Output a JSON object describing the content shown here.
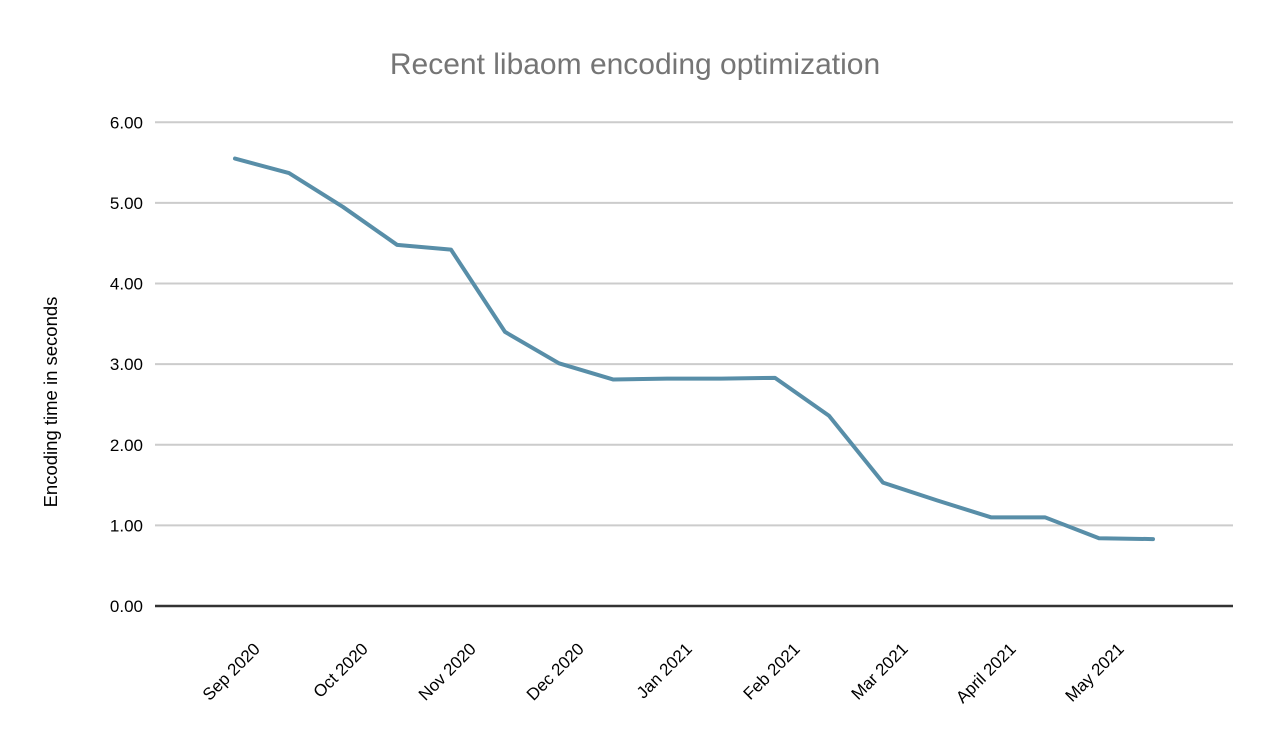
{
  "chart_data": {
    "type": "line",
    "title": "Recent libaom encoding optimization",
    "xlabel": "",
    "ylabel": "Encoding time in seconds",
    "ylim": [
      0,
      6
    ],
    "ytick_step": 1,
    "ytick_labels": [
      "0.00",
      "1.00",
      "2.00",
      "3.00",
      "4.00",
      "5.00",
      "6.00"
    ],
    "categories": [
      "Sep 2020",
      "Oct 2020",
      "Nov 2020",
      "Dec 2020",
      "Jan 2021",
      "Feb 2021",
      "Mar 2021",
      "April 2021",
      "May 2021"
    ],
    "samples_per_month": 2,
    "grid": true,
    "legend_position": "none",
    "series": [
      {
        "name": "Encoding time in seconds",
        "values": [
          5.55,
          5.37,
          4.95,
          4.48,
          4.42,
          3.4,
          3.01,
          2.81,
          2.82,
          2.82,
          2.83,
          2.36,
          1.53,
          1.31,
          1.1,
          1.1,
          0.84,
          0.83
        ]
      }
    ]
  },
  "style": {
    "line_color": "#588ea8",
    "title_color": "#757575",
    "gridline_color": "#cccccc",
    "axis_line_color": "#333333",
    "tick_text_color": "#000000",
    "background_color": "#ffffff"
  }
}
